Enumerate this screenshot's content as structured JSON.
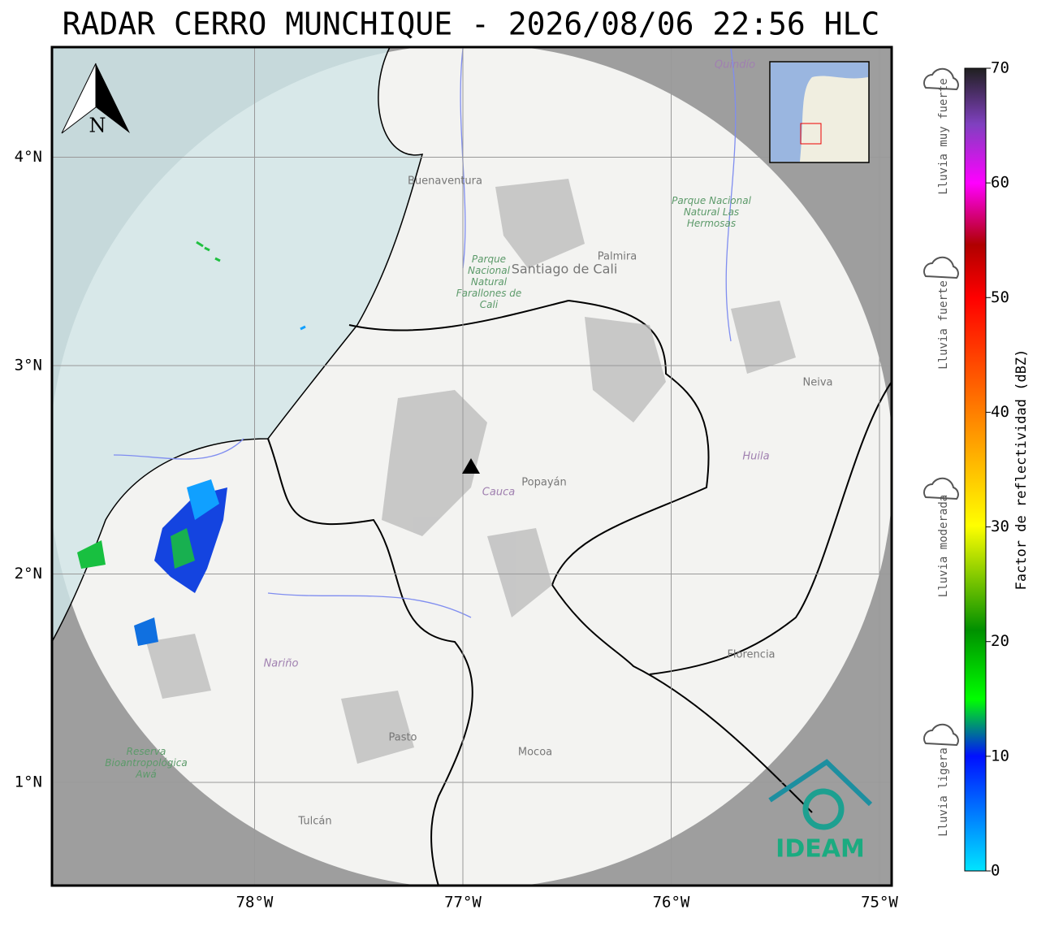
{
  "header": {
    "title": "RADAR CERRO MUNCHIQUE - 2026/08/06 22:56 HLC"
  },
  "map": {
    "north_label": "N",
    "lat_ticks": [
      {
        "value": 4,
        "label": "4°N"
      },
      {
        "value": 3,
        "label": "3°N"
      },
      {
        "value": 2,
        "label": "2°N"
      },
      {
        "value": 1,
        "label": "1°N"
      }
    ],
    "lon_ticks": [
      {
        "value": -78,
        "label": "78°W"
      },
      {
        "value": -77,
        "label": "77°W"
      },
      {
        "value": -76,
        "label": "76°W"
      },
      {
        "value": -75,
        "label": "75°W"
      }
    ],
    "places": [
      "Buenaventura",
      "Santiago de Cali",
      "Palmira",
      "Popayán",
      "Cauca",
      "Neiva",
      "Huila",
      "Florencia",
      "Nariño",
      "Pasto",
      "Mocoa",
      "Tulcán",
      "Quindío"
    ],
    "parks": [
      "Parque Nacional Natural Farallones de Cali",
      "Parque Nacional Natural Las Hermosas",
      "Reserva Bioantropológica Awá"
    ],
    "logo": "IDEAM"
  },
  "colorbar": {
    "label": "Factor de reflectividad (dBZ)",
    "lim": [
      0,
      70
    ],
    "ticks": [
      0,
      10,
      20,
      30,
      40,
      50,
      60,
      70
    ],
    "categories": [
      "Lluvia muy fuerte",
      "Lluvia fuerte",
      "Lluvia moderada",
      "Lluvia ligera"
    ]
  }
}
